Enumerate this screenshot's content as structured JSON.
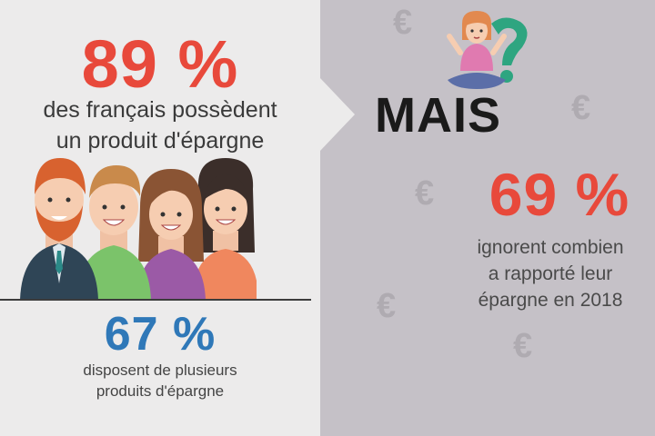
{
  "left_panel": {
    "headline_stat": "89 %",
    "headline_text_line1": "des français possèdent",
    "headline_text_line2": "un produit d'épargne",
    "secondary_stat": "67 %",
    "secondary_text_line1": "disposent de plusieurs",
    "secondary_text_line2": "produits d'épargne"
  },
  "right_panel": {
    "connector": "MAIS",
    "stat": "69 %",
    "text_line1": "ignorent combien",
    "text_line2": "a rapporté leur",
    "text_line3": "épargne en 2018",
    "decor_symbol": "€"
  },
  "icons": [
    "people-group-illustration",
    "thinking-girl-illustration",
    "question-mark-icon",
    "euro-icon"
  ],
  "colors": {
    "accent_red": "#e8493b",
    "accent_blue": "#2f78b8",
    "left_bg": "#ecebeb",
    "right_bg": "#c5c1c7"
  }
}
